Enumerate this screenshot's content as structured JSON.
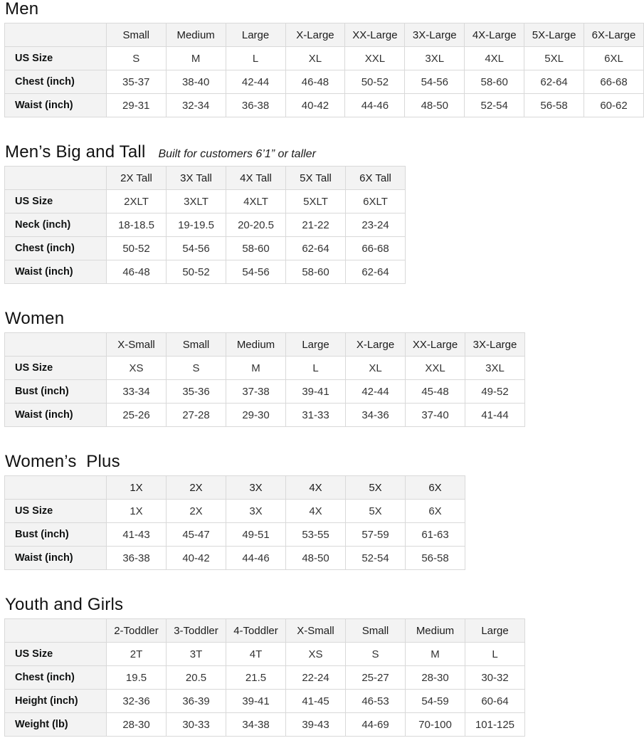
{
  "colors": {
    "header_bg": "#f3f3f3",
    "border": "#d9d9d9",
    "title_text": "#111111",
    "cell_text": "#333333"
  },
  "sections": [
    {
      "id": "men",
      "title": "Men",
      "subtitle": "",
      "columns": [
        "Small",
        "Medium",
        "Large",
        "X-Large",
        "XX-Large",
        "3X-Large",
        "4X-Large",
        "5X-Large",
        "6X-Large"
      ],
      "rows": [
        {
          "label": "US Size",
          "values": [
            "S",
            "M",
            "L",
            "XL",
            "XXL",
            "3XL",
            "4XL",
            "5XL",
            "6XL"
          ]
        },
        {
          "label": "Chest (inch)",
          "values": [
            "35-37",
            "38-40",
            "42-44",
            "46-48",
            "50-52",
            "54-56",
            "58-60",
            "62-64",
            "66-68"
          ]
        },
        {
          "label": "Waist (inch)",
          "values": [
            "29-31",
            "32-34",
            "36-38",
            "40-42",
            "44-46",
            "48-50",
            "52-54",
            "56-58",
            "60-62"
          ]
        }
      ]
    },
    {
      "id": "mens-big-and-tall",
      "title": "Men’s Big and Tall",
      "subtitle": "Built for customers 6’1” or taller",
      "columns": [
        "2X Tall",
        "3X Tall",
        "4X Tall",
        "5X Tall",
        "6X Tall"
      ],
      "rows": [
        {
          "label": "US Size",
          "values": [
            "2XLT",
            "3XLT",
            "4XLT",
            "5XLT",
            "6XLT"
          ]
        },
        {
          "label": "Neck (inch)",
          "values": [
            "18-18.5",
            "19-19.5",
            "20-20.5",
            "21-22",
            "23-24"
          ]
        },
        {
          "label": "Chest (inch)",
          "values": [
            "50-52",
            "54-56",
            "58-60",
            "62-64",
            "66-68"
          ]
        },
        {
          "label": "Waist (inch)",
          "values": [
            "46-48",
            "50-52",
            "54-56",
            "58-60",
            "62-64"
          ]
        }
      ]
    },
    {
      "id": "women",
      "title": "Women",
      "subtitle": "",
      "columns": [
        "X-Small",
        "Small",
        "Medium",
        "Large",
        "X-Large",
        "XX-Large",
        "3X-Large"
      ],
      "rows": [
        {
          "label": "US Size",
          "values": [
            "XS",
            "S",
            "M",
            "L",
            "XL",
            "XXL",
            "3XL"
          ]
        },
        {
          "label": "Bust (inch)",
          "values": [
            "33-34",
            "35-36",
            "37-38",
            "39-41",
            "42-44",
            "45-48",
            "49-52"
          ]
        },
        {
          "label": "Waist (inch)",
          "values": [
            "25-26",
            "27-28",
            "29-30",
            "31-33",
            "34-36",
            "37-40",
            "41-44"
          ]
        }
      ]
    },
    {
      "id": "womens-plus",
      "title": "Women’s  Plus",
      "subtitle": "",
      "columns": [
        "1X",
        "2X",
        "3X",
        "4X",
        "5X",
        "6X"
      ],
      "rows": [
        {
          "label": "US Size",
          "values": [
            "1X",
            "2X",
            "3X",
            "4X",
            "5X",
            "6X"
          ]
        },
        {
          "label": "Bust (inch)",
          "values": [
            "41-43",
            "45-47",
            "49-51",
            "53-55",
            "57-59",
            "61-63"
          ]
        },
        {
          "label": "Waist (inch)",
          "values": [
            "36-38",
            "40-42",
            "44-46",
            "48-50",
            "52-54",
            "56-58"
          ]
        }
      ]
    },
    {
      "id": "youth-and-girls",
      "title": "Youth and Girls",
      "subtitle": "",
      "columns": [
        "2-Toddler",
        "3-Toddler",
        "4-Toddler",
        "X-Small",
        "Small",
        "Medium",
        "Large"
      ],
      "rows": [
        {
          "label": "US Size",
          "values": [
            "2T",
            "3T",
            "4T",
            "XS",
            "S",
            "M",
            "L"
          ]
        },
        {
          "label": "Chest (inch)",
          "values": [
            "19.5",
            "20.5",
            "21.5",
            "22-24",
            "25-27",
            "28-30",
            "30-32"
          ]
        },
        {
          "label": "Height (inch)",
          "values": [
            "32-36",
            "36-39",
            "39-41",
            "41-45",
            "46-53",
            "54-59",
            "60-64"
          ]
        },
        {
          "label": "Weight (lb)",
          "values": [
            "28-30",
            "30-33",
            "34-38",
            "39-43",
            "44-69",
            "70-100",
            "101-125"
          ]
        }
      ]
    }
  ]
}
